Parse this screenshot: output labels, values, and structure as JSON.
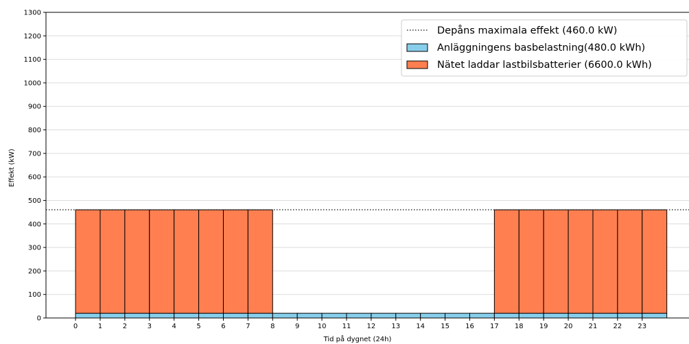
{
  "chart_data": {
    "type": "bar",
    "stacked": true,
    "title": "",
    "xlabel": "Tid på dygnet (24h)",
    "ylabel": "Effekt (kW)",
    "categories": [
      "0",
      "1",
      "2",
      "3",
      "4",
      "5",
      "6",
      "7",
      "8",
      "9",
      "10",
      "11",
      "12",
      "13",
      "14",
      "15",
      "16",
      "17",
      "18",
      "19",
      "20",
      "21",
      "22",
      "23"
    ],
    "bar_alignment": "edge",
    "xlim": [
      -1.2,
      24.9
    ],
    "ylim": [
      0,
      1300
    ],
    "yticks": [
      0,
      100,
      200,
      300,
      400,
      500,
      600,
      700,
      800,
      900,
      1000,
      1100,
      1200,
      1300
    ],
    "grid": "horizontal",
    "series": [
      {
        "name": "Anläggningens basbelastning(480.0 kWh)",
        "color": "#87CEEB",
        "values": [
          20,
          20,
          20,
          20,
          20,
          20,
          20,
          20,
          20,
          20,
          20,
          20,
          20,
          20,
          20,
          20,
          20,
          20,
          20,
          20,
          20,
          20,
          20,
          20
        ]
      },
      {
        "name": "Nätet laddar lastbilsbatterier (6600.0 kWh)",
        "color": "#FF7F50",
        "values": [
          440,
          440,
          440,
          440,
          440,
          440,
          440,
          440,
          0,
          0,
          0,
          0,
          0,
          0,
          0,
          0,
          0,
          440,
          440,
          440,
          440,
          440,
          440,
          440
        ]
      }
    ],
    "reference_lines": [
      {
        "name": "Depåns maximala effekt (460.0 kW)",
        "y": 460,
        "style": "dotted",
        "color": "#333333"
      }
    ],
    "legend": {
      "placement": "top-right",
      "entries": [
        {
          "label": "Depåns maximala effekt (460.0 kW)",
          "kind": "line",
          "color": "#333333"
        },
        {
          "label": "Anläggningens basbelastning(480.0 kWh)",
          "kind": "patch",
          "color": "#87CEEB"
        },
        {
          "label": "Nätet laddar lastbilsbatterier (6600.0 kWh)",
          "kind": "patch",
          "color": "#FF7F50"
        }
      ]
    }
  }
}
